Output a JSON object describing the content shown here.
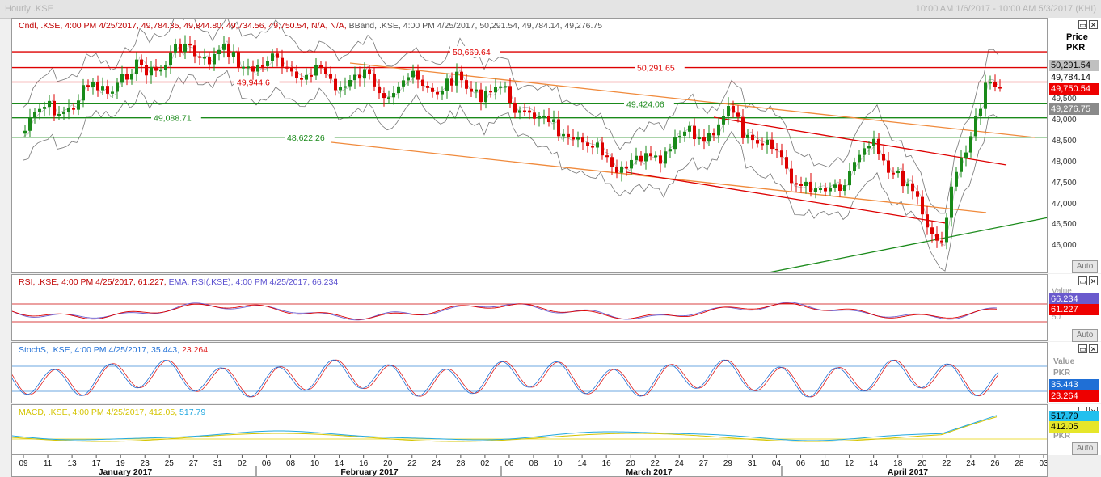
{
  "window": {
    "title": "Hourly .KSE",
    "range": "10:00 AM 1/6/2017 - 10:00 AM 5/3/2017 (KHI)"
  },
  "main_legend": {
    "cndl": "Cndl, .KSE, 4:00 PM 4/25/2017, 49,784.35, 49,844.80, 49,734.56, 49,750.54, N/A, N/A,",
    "bband": "BBand, .KSE, 4:00 PM 4/25/2017, 50,291.54, 49,784.14, 49,276.75"
  },
  "rsi_legend": {
    "rsi": "RSI, .KSE, 4:00 PM 4/25/2017, 61.227,",
    "ema": "EMA, RSI(.KSE), 4:00 PM 4/25/2017, 66.234"
  },
  "stoch_legend": {
    "k": "StochS, .KSE, 4:00 PM 4/25/2017, 35.443,",
    "d": "23.264"
  },
  "macd_legend": {
    "a": "MACD, .KSE, 4:00 PM 4/25/2017, 412.05,",
    "b": "517.79"
  },
  "hlines": [
    {
      "label": "50,669.64",
      "value": 50669.64,
      "color": "#dd0000"
    },
    {
      "label": "50,291.65",
      "value": 50291.65,
      "color": "#dd0000"
    },
    {
      "label": "49,944.6",
      "value": 49944.6,
      "color": "#dd0000"
    },
    {
      "label": "49,424.06",
      "value": 49424.06,
      "color": "#1a8a1a"
    },
    {
      "label": "49,088.71",
      "value": 49088.71,
      "color": "#1a8a1a"
    },
    {
      "label": "48,622.26",
      "value": 48622.26,
      "color": "#1a8a1a"
    }
  ],
  "price_axis": {
    "header": "Price",
    "unit": "PKR",
    "ticks": [
      "49,500",
      "49,000",
      "48,500",
      "48,000",
      "47,500",
      "47,000",
      "46,500",
      "46,000"
    ],
    "tags": [
      {
        "text": "50,291.54",
        "bg": "#c0c0c0",
        "fg": "#000000"
      },
      {
        "text": "49,784.14",
        "bg": "#ffffff",
        "fg": "#000000"
      },
      {
        "text": "49,750.54",
        "bg": "#ee0000",
        "fg": "#ffffff"
      },
      {
        "text": "49,276.75",
        "bg": "#8a8a8a",
        "fg": "#ffffff"
      }
    ],
    "auto": "Auto"
  },
  "rsi_axis": {
    "head": "Value",
    "tick": "50",
    "tags": [
      {
        "text": "66.234",
        "bg": "#6a5acd",
        "fg": "#ffffff"
      },
      {
        "text": "61.227",
        "bg": "#ee0000",
        "fg": "#ffffff"
      }
    ],
    "auto": "Auto"
  },
  "stoch_axis": {
    "head": "Value",
    "unit": "PKR",
    "tags": [
      {
        "text": "35.443",
        "bg": "#1f6fd6",
        "fg": "#ffffff"
      },
      {
        "text": "23.264",
        "bg": "#ee0000",
        "fg": "#ffffff"
      }
    ],
    "auto": "Auto"
  },
  "macd_axis": {
    "unit": "PKR",
    "tags": [
      {
        "text": "517.79",
        "bg": "#22c0ee",
        "fg": "#000000"
      },
      {
        "text": "412.05",
        "bg": "#e6e62a",
        "fg": "#000000"
      }
    ],
    "auto": "Auto"
  },
  "x_axis": {
    "days": [
      "09",
      "11",
      "13",
      "17",
      "19",
      "23",
      "25",
      "27",
      "31",
      "02",
      "06",
      "08",
      "10",
      "14",
      "16",
      "20",
      "22",
      "24",
      "28",
      "02",
      "06",
      "08",
      "10",
      "14",
      "16",
      "20",
      "22",
      "24",
      "27",
      "29",
      "31",
      "04",
      "06",
      "10",
      "12",
      "14",
      "18",
      "20",
      "22",
      "24",
      "26",
      "28",
      "03"
    ],
    "months": [
      "January 2017",
      "February 2017",
      "March 2017",
      "April 2017"
    ]
  },
  "chart_data": {
    "type": "line",
    "title": "Hourly .KSE",
    "ylabel": "Price PKR",
    "ylim": [
      45500,
      51000
    ],
    "x": [
      "2017-01-09",
      "2017-01-27",
      "2017-02-14",
      "2017-03-01",
      "2017-03-16",
      "2017-03-27",
      "2017-04-06",
      "2017-04-12",
      "2017-04-19",
      "2017-04-24",
      "2017-04-25"
    ],
    "series": [
      {
        "name": "Cndl .KSE",
        "values": [
          48900,
          50700,
          49950,
          49800,
          47800,
          49100,
          47200,
          48550,
          46200,
          50000,
          49750.54
        ]
      }
    ],
    "last": {
      "open": 49784.35,
      "high": 49844.8,
      "low": 49734.56,
      "close": 49750.54
    },
    "bband": {
      "upper": 50291.54,
      "middle": 49784.14,
      "lower": 49276.75
    },
    "rsi": {
      "rsi": 61.227,
      "ema": 66.234
    },
    "stochs": {
      "k": 35.443,
      "d": 23.264
    },
    "macd": {
      "macd": 412.05,
      "signal": 517.79
    }
  }
}
